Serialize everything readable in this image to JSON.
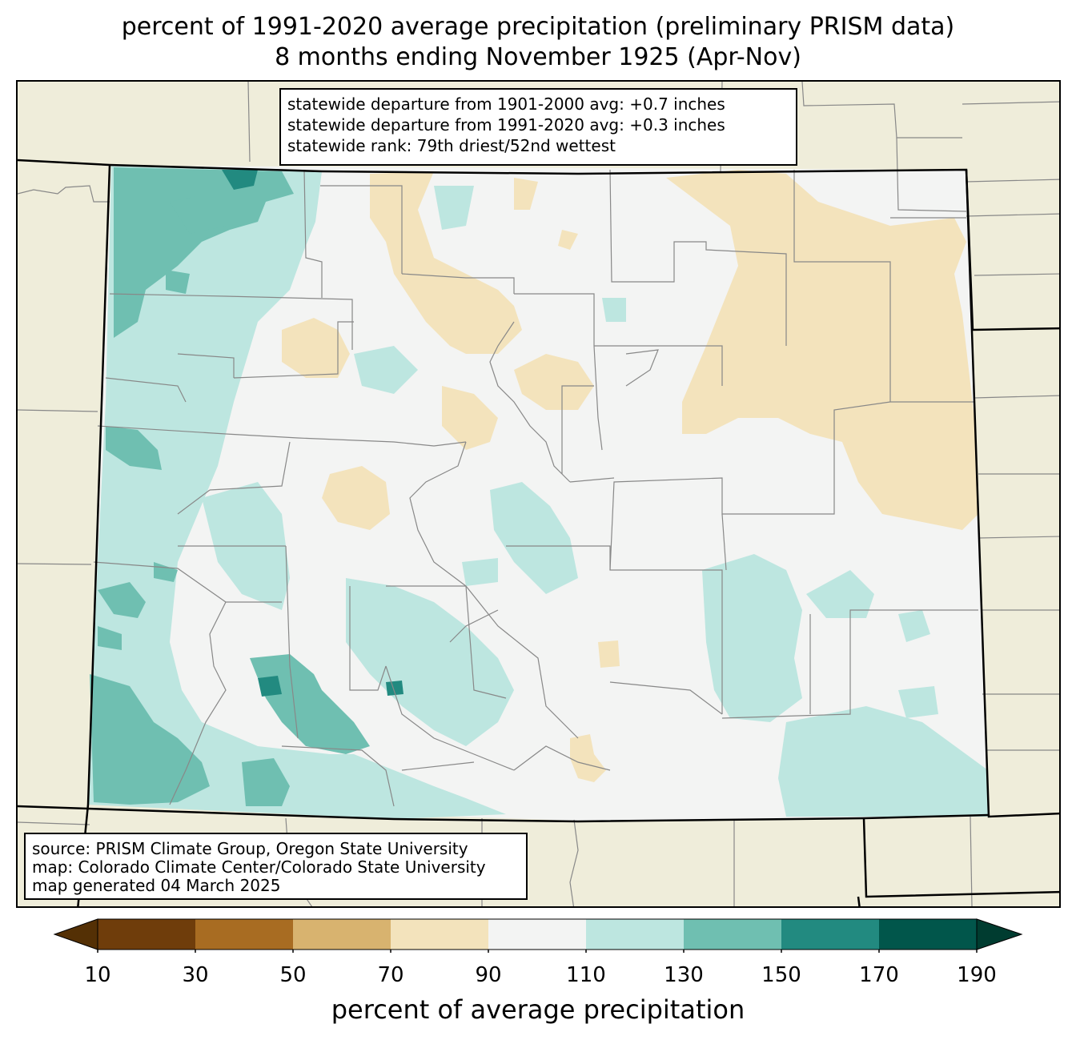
{
  "title": {
    "line1": "percent of 1991-2020 average precipitation (preliminary PRISM data)",
    "line2": "8 months ending November 1925 (Apr-Nov)"
  },
  "stats": {
    "line1": "statewide departure from 1901-2000 avg: +0.7 inches",
    "line2": "statewide departure from 1991-2020 avg: +0.3 inches",
    "line3": "statewide rank: 79th driest/52nd wettest"
  },
  "source": {
    "line1": "source: PRISM Climate Group, Oregon State University",
    "line2": "map: Colorado Climate Center/Colorado State University",
    "line3": "map generated 04 March 2025"
  },
  "colorbar": {
    "label": "percent of average precipitation",
    "ticks": [
      "10",
      "30",
      "50",
      "70",
      "90",
      "110",
      "130",
      "150",
      "170",
      "190"
    ],
    "under_color": "#543005",
    "over_color": "#003c30",
    "bins": [
      {
        "range": "10-30",
        "color": "#6f3d0b"
      },
      {
        "range": "30-50",
        "color": "#a86c22"
      },
      {
        "range": "50-70",
        "color": "#d8b36f"
      },
      {
        "range": "70-90",
        "color": "#f3e3bc"
      },
      {
        "range": "90-110",
        "color": "#f3f4f3"
      },
      {
        "range": "110-130",
        "color": "#bde6e0"
      },
      {
        "range": "130-150",
        "color": "#6fbfb1"
      },
      {
        "range": "150-170",
        "color": "#228a80"
      },
      {
        "range": "170-190",
        "color": "#01564b"
      }
    ]
  },
  "map": {
    "background_color": "#efedda",
    "state_color": "#f3f4f3"
  }
}
